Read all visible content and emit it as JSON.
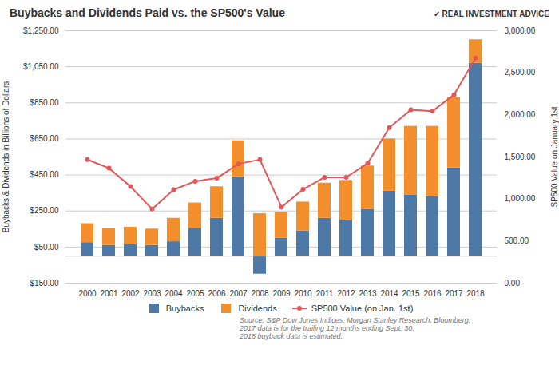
{
  "chart_data": {
    "type": "bar",
    "title": "Buybacks and Dividends Paid vs. the SP500's Value",
    "annotations": [
      "✓ REAL INVESTMENT ADVICE",
      "Source: S&P Dow Jones Indices, Morgan Stanley Research, Bloomberg.\n2017 data is for the trailing 12 months ending Sept. 30.\n2018 buyback data is estimated."
    ],
    "categories": [
      "2000",
      "2001",
      "2002",
      "2003",
      "2004",
      "2005",
      "2006",
      "2007",
      "2008",
      "2009",
      "2010",
      "2011",
      "2012",
      "2013",
      "2014",
      "2015",
      "2016",
      "2017",
      "2018"
    ],
    "series": [
      {
        "name": "Buybacks",
        "type": "bar",
        "values": [
          75,
          60,
          65,
          60,
          80,
          155,
          210,
          440,
          -100,
          100,
          140,
          210,
          200,
          260,
          360,
          340,
          330,
          490,
          1070
        ]
      },
      {
        "name": "Dividends",
        "type": "bar",
        "values": [
          105,
          95,
          95,
          90,
          130,
          140,
          175,
          200,
          235,
          140,
          160,
          195,
          220,
          240,
          290,
          380,
          390,
          390,
          130
        ]
      },
      {
        "name": "SP500 Value (on Jan. 1st)",
        "type": "line",
        "axis": "y2",
        "marker": "circle",
        "values": [
          1469,
          1366,
          1148,
          880,
          1111,
          1211,
          1248,
          1418,
          1468,
          903,
          1115,
          1258,
          1258,
          1426,
          1848,
          2059,
          2044,
          2239,
          2674
        ]
      }
    ],
    "stacked": true,
    "ylabel": "Buybacks & Dividends in Billions of Dollars",
    "y2label": "SP500 Value on January 1st",
    "ylim": [
      -150,
      1250
    ],
    "yticks": [
      {
        "value": -150,
        "label": "-$150.00"
      },
      {
        "value": 50,
        "label": "$50.00"
      },
      {
        "value": 250,
        "label": "$250.00"
      },
      {
        "value": 450,
        "label": "$450.00"
      },
      {
        "value": 650,
        "label": "$650.00"
      },
      {
        "value": 850,
        "label": "$850.00"
      },
      {
        "value": 1050,
        "label": "$1,050.00"
      },
      {
        "value": 1250,
        "label": "$1,250.00"
      }
    ],
    "y2lim": [
      0,
      3000
    ],
    "y2ticks": [
      {
        "value": 0,
        "label": "0.00"
      },
      {
        "value": 500,
        "label": "500.00"
      },
      {
        "value": 1000,
        "label": "1,000.00"
      },
      {
        "value": 1500,
        "label": "1,500.00"
      },
      {
        "value": 2000,
        "label": "2,000.00"
      },
      {
        "value": 2500,
        "label": "2,500.00"
      },
      {
        "value": 3000,
        "label": "3,000.00"
      }
    ],
    "grid": true,
    "legend": "bottom"
  }
}
